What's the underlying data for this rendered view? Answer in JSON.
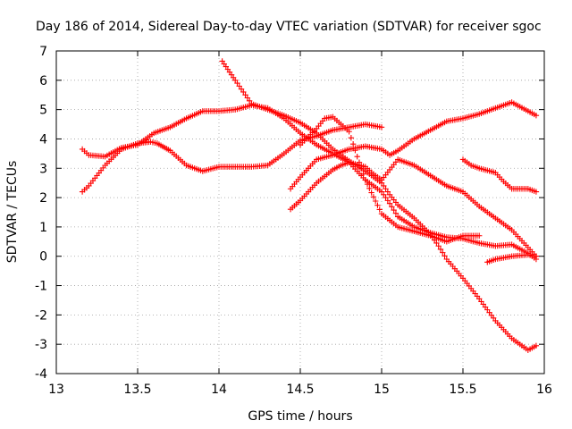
{
  "chart_data": {
    "type": "scatter",
    "title": "Day 186 of 2014, Sidereal Day-to-day VTEC variation (SDTVAR) for receiver sgoc",
    "xlabel": "GPS time / hours",
    "ylabel": "SDTVAR / TECUs",
    "xlim": [
      13,
      16
    ],
    "ylim": [
      -4,
      7
    ],
    "xticks": [
      13,
      13.5,
      14,
      14.5,
      15,
      15.5,
      16
    ],
    "xtick_labels": [
      "13",
      "13.5",
      "14",
      "14.5",
      "15",
      "15.5",
      "16"
    ],
    "yticks": [
      -4,
      -3,
      -2,
      -1,
      0,
      1,
      2,
      3,
      4,
      5,
      6,
      7
    ],
    "ytick_labels": [
      "-4",
      "-3",
      "-2",
      "-1",
      "0",
      "1",
      "2",
      "3",
      "4",
      "5",
      "6",
      "7"
    ],
    "grid": true,
    "marker": "+",
    "marker_color": "#ff0000",
    "series": [
      {
        "x": [
          13.16,
          13.2,
          13.3,
          13.4,
          13.5,
          13.58,
          13.62,
          13.7,
          13.8,
          13.9,
          14.0,
          14.1,
          14.2,
          14.3,
          14.4,
          14.5,
          14.6,
          14.7,
          14.8,
          14.9,
          15.0
        ],
        "y": [
          2.2,
          2.4,
          3.1,
          3.65,
          3.85,
          3.9,
          3.85,
          3.6,
          3.1,
          2.9,
          3.05,
          3.05,
          3.05,
          3.1,
          3.5,
          3.95,
          4.1,
          4.3,
          4.4,
          4.5,
          4.4
        ]
      },
      {
        "x": [
          13.16,
          13.2,
          13.3,
          13.4,
          13.5,
          13.6,
          13.7,
          13.8,
          13.9,
          14.0,
          14.1,
          14.2,
          14.3,
          14.4,
          14.5,
          14.6,
          14.7,
          14.8,
          14.9,
          15.0,
          15.05,
          15.1,
          15.2,
          15.3,
          15.4,
          15.5,
          15.6,
          15.7,
          15.8,
          15.9,
          15.95
        ],
        "y": [
          3.65,
          3.45,
          3.4,
          3.7,
          3.8,
          4.2,
          4.4,
          4.7,
          4.95,
          4.95,
          5.0,
          5.15,
          5.05,
          4.7,
          4.2,
          3.8,
          3.5,
          3.2,
          2.6,
          2.2,
          1.8,
          1.35,
          1.0,
          0.8,
          0.65,
          0.6,
          0.45,
          0.35,
          0.4,
          0.1,
          -0.1
        ]
      },
      {
        "x": [
          14.02,
          14.1,
          14.2,
          14.3,
          14.4,
          14.5,
          14.6,
          14.7,
          14.8,
          14.9,
          15.0,
          15.05,
          15.1,
          15.2,
          15.3,
          15.35,
          15.4,
          15.5,
          15.6,
          15.7,
          15.8,
          15.9,
          15.95
        ],
        "y": [
          6.65,
          6.0,
          5.2,
          5.0,
          4.8,
          4.55,
          4.2,
          3.65,
          3.25,
          2.9,
          2.5,
          2.1,
          1.75,
          1.3,
          0.75,
          0.35,
          -0.1,
          -0.75,
          -1.45,
          -2.2,
          -2.8,
          -3.2,
          -3.05
        ]
      },
      {
        "x": [
          14.44,
          14.5,
          14.6,
          14.7,
          14.75,
          14.8,
          14.9,
          14.95,
          15.0,
          15.1,
          15.2,
          15.3,
          15.4,
          15.5,
          15.6,
          15.7,
          15.8,
          15.9,
          15.95
        ],
        "y": [
          1.6,
          1.9,
          2.5,
          2.95,
          3.1,
          3.2,
          3.05,
          2.8,
          2.6,
          3.3,
          3.1,
          2.75,
          2.4,
          2.2,
          1.7,
          1.3,
          0.9,
          0.3,
          0.0
        ]
      },
      {
        "x": [
          14.44,
          14.5,
          14.6,
          14.7,
          14.8,
          14.9,
          15.0,
          15.05,
          15.1,
          15.2,
          15.3,
          15.4,
          15.5,
          15.6,
          15.7,
          15.8,
          15.9,
          15.95
        ],
        "y": [
          2.3,
          2.7,
          3.3,
          3.45,
          3.65,
          3.75,
          3.65,
          3.45,
          3.6,
          4.0,
          4.3,
          4.6,
          4.7,
          4.85,
          5.05,
          5.25,
          4.95,
          4.8
        ]
      },
      {
        "x": [
          14.5,
          14.6,
          14.65,
          14.7,
          14.8,
          14.85,
          14.9,
          15.0,
          15.1,
          15.2,
          15.3,
          15.4,
          15.5,
          15.6
        ],
        "y": [
          3.8,
          4.35,
          4.7,
          4.75,
          4.25,
          3.4,
          2.6,
          1.45,
          1.0,
          0.85,
          0.7,
          0.5,
          0.7,
          0.7
        ]
      },
      {
        "x": [
          15.5,
          15.55,
          15.6,
          15.7,
          15.75,
          15.8,
          15.85,
          15.9,
          15.95
        ],
        "y": [
          3.3,
          3.1,
          3.0,
          2.85,
          2.55,
          2.3,
          2.3,
          2.3,
          2.2
        ]
      },
      {
        "x": [
          15.65,
          15.7,
          15.8,
          15.9,
          15.95
        ],
        "y": [
          -0.2,
          -0.1,
          0.0,
          0.05,
          0.0
        ]
      }
    ]
  }
}
